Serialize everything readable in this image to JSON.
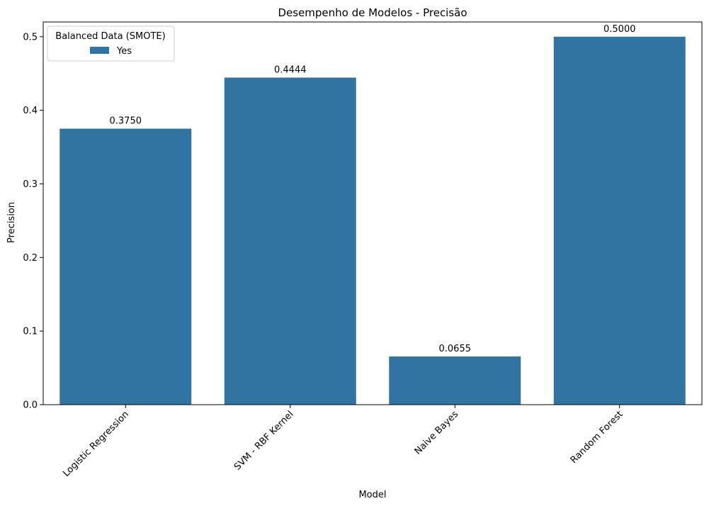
{
  "chart_data": {
    "type": "bar",
    "title": "Desempenho de Modelos - Precisão",
    "xlabel": "Model",
    "ylabel": "Precision",
    "categories": [
      "Logistic Regression",
      "SVM - RBF Kernel",
      "Naive Bayes",
      "Random Forest"
    ],
    "series": [
      {
        "name": "Yes",
        "values": [
          0.375,
          0.4444,
          0.0655,
          0.5
        ],
        "color": "#3274a1"
      }
    ],
    "data_labels": [
      "0.3750",
      "0.4444",
      "0.0655",
      "0.5000"
    ],
    "ylim": [
      0,
      0.52
    ],
    "yticks": [
      0.0,
      0.1,
      0.2,
      0.3,
      0.4,
      0.5
    ],
    "ytick_labels": [
      "0.0",
      "0.1",
      "0.2",
      "0.3",
      "0.4",
      "0.5"
    ],
    "legend": {
      "title": "Balanced Data (SMOTE)",
      "placement": "top-left"
    },
    "grid": false
  }
}
